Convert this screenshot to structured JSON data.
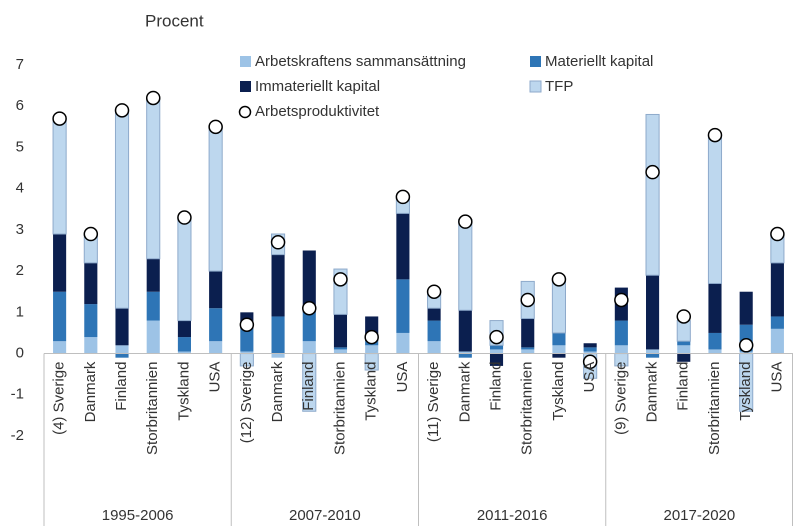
{
  "chart_data": {
    "type": "stacked_bar",
    "ylabel": "Procent",
    "categories": [
      "(4) Sverige",
      "Danmark",
      "Finland",
      "Storbritannien",
      "Tyskland",
      "USA",
      "(12) Sverige",
      "Danmark",
      "Finland",
      "Storbritannien",
      "Tyskland",
      "USA",
      "(11) Sverige",
      "Danmark",
      "Finland",
      "Storbritannien",
      "Tyskland",
      "USA",
      "(9) Sverige",
      "Danmark",
      "Finland",
      "Storbritannien",
      "Tyskland",
      "USA"
    ],
    "groups": [
      "1995-2006",
      "2007-2010",
      "2011-2016",
      "2017-2020"
    ],
    "series": [
      {
        "name": "Arbetskraftens sammansättning",
        "color": "#9dc3e6",
        "values": [
          0.3,
          0.4,
          0.2,
          0.8,
          0.05,
          0.3,
          0.05,
          -0.1,
          0.3,
          0.1,
          0.2,
          0.5,
          0.3,
          0.05,
          0.1,
          0.1,
          0.2,
          0.05,
          0.2,
          0.1,
          0.2,
          0.1,
          0.05,
          0.6
        ]
      },
      {
        "name": "Materiellt kapital",
        "color": "#2e75b6",
        "values": [
          1.2,
          0.8,
          -0.1,
          0.7,
          0.35,
          0.8,
          0.55,
          0.9,
          0.7,
          0.05,
          0.1,
          1.3,
          0.5,
          -0.1,
          0.1,
          0.05,
          0.3,
          0.1,
          0.6,
          -0.1,
          0.1,
          0.4,
          0.65,
          0.3
        ]
      },
      {
        "name": "Immateriellt kapital",
        "color": "#0b1f4f",
        "values": [
          1.4,
          1.0,
          0.9,
          0.8,
          0.4,
          0.9,
          0.4,
          1.5,
          1.5,
          0.8,
          0.6,
          1.6,
          0.3,
          1.0,
          -0.3,
          0.7,
          -0.1,
          0.1,
          0.8,
          1.8,
          -0.2,
          1.2,
          0.8,
          1.3
        ]
      },
      {
        "name": "TFP",
        "color": "#bdd7ee",
        "values": [
          2.8,
          0.7,
          4.8,
          3.9,
          2.5,
          3.5,
          -0.3,
          0.5,
          -1.4,
          1.1,
          -0.4,
          0.4,
          0.4,
          2.2,
          0.6,
          0.9,
          1.3,
          -0.6,
          -0.3,
          3.9,
          0.5,
          3.6,
          -1.4,
          0.7
        ]
      }
    ],
    "marker_series": {
      "name": "Arbetsproduktivitet",
      "values": [
        5.7,
        2.9,
        5.9,
        6.2,
        3.3,
        5.5,
        0.7,
        2.7,
        1.1,
        1.8,
        0.4,
        3.8,
        1.5,
        3.2,
        0.4,
        1.3,
        1.8,
        -0.2,
        1.3,
        4.4,
        0.9,
        5.3,
        0.2,
        2.9
      ]
    },
    "ylim": [
      -2,
      7
    ],
    "yticks": [
      -2,
      -1,
      0,
      1,
      2,
      3,
      4,
      5,
      6,
      7
    ],
    "grid": false
  }
}
